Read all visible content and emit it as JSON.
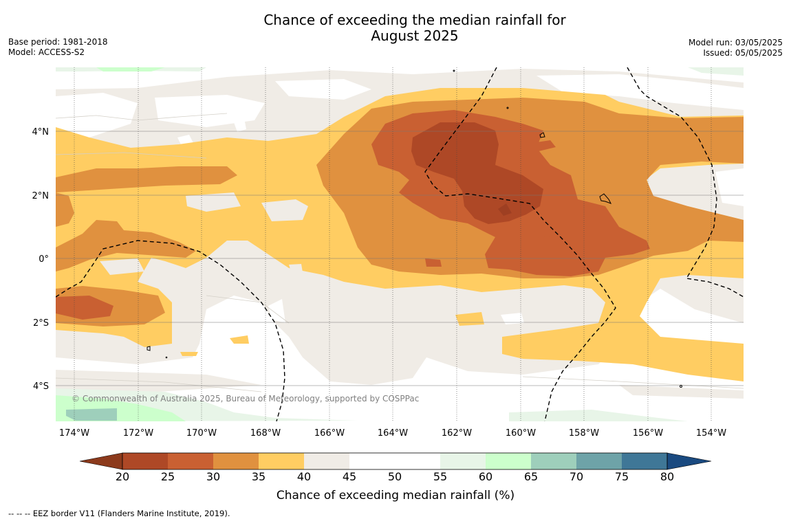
{
  "header": {
    "title_line1": "Chance of exceeding the median rainfall for",
    "title_line2": "August 2025",
    "base_period": "Base period: 1981-2018",
    "model": "Model: ACCESS-S2",
    "model_run": "Model run: 03/05/2025",
    "issued": "Issued: 05/05/2025"
  },
  "map": {
    "copyright": "© Commonwealth of Australia 2025, Bureau of Meteorology, supported by COSPPac",
    "lon_labels": [
      "174°W",
      "172°W",
      "170°W",
      "168°W",
      "166°W",
      "164°W",
      "162°W",
      "160°W",
      "158°W",
      "156°W",
      "154°W"
    ],
    "lat_labels": [
      "4°N",
      "2°N",
      "0°",
      "2°S",
      "4°S"
    ],
    "eez_line_style": "dashed black"
  },
  "legend": {
    "title": "Chance of exceeding median rainfall (%)",
    "tick_labels": [
      "20",
      "25",
      "30",
      "35",
      "40",
      "45",
      "50",
      "55",
      "60",
      "65",
      "70",
      "75",
      "80"
    ],
    "bins": [
      {
        "range": "<20",
        "color": "#8c3a1c"
      },
      {
        "range": "20-25",
        "color": "#ae4826"
      },
      {
        "range": "25-30",
        "color": "#c96032"
      },
      {
        "range": "30-35",
        "color": "#e0913f"
      },
      {
        "range": "35-40",
        "color": "#ffcd62"
      },
      {
        "range": "40-45",
        "color": "#f0ece6"
      },
      {
        "range": "45-50",
        "color": "#ffffff"
      },
      {
        "range": "50-55",
        "color": "#ffffff"
      },
      {
        "range": "55-60",
        "color": "#e8f5e8"
      },
      {
        "range": "60-65",
        "color": "#ccffcc"
      },
      {
        "range": "65-70",
        "color": "#9ecfbb"
      },
      {
        "range": "70-75",
        "color": "#6ea3a8"
      },
      {
        "range": "75-80",
        "color": "#3f7797"
      },
      {
        "range": ">80",
        "color": "#1a4a80"
      }
    ]
  },
  "footnote": "--  --  -- EEZ border V11 (Flanders Marine Institute, 2019)."
}
